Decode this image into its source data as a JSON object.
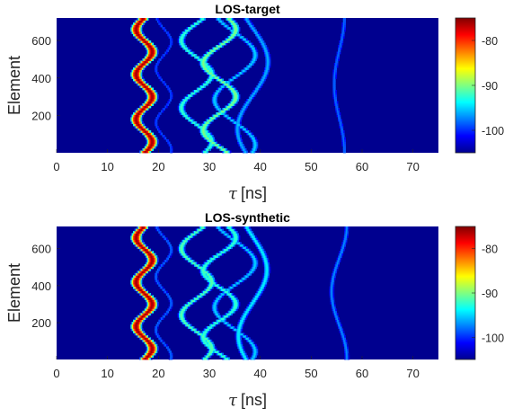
{
  "chart_data": [
    {
      "type": "heatmap",
      "title": "LOS-target",
      "xlabel_symbol": "τ",
      "xlabel_unit": "[ns]",
      "ylabel": "Element",
      "xlim": [
        0,
        75
      ],
      "ylim": [
        1,
        720
      ],
      "xticks": [
        0,
        10,
        20,
        30,
        40,
        50,
        60,
        70
      ],
      "yticks": [
        200,
        400,
        600
      ],
      "colorbar": {
        "range": [
          -105,
          -75
        ],
        "ticks": [
          -80,
          -90,
          -100
        ],
        "colormap": "jet"
      },
      "background_level": -103,
      "paths": [
        {
          "center": 17.2,
          "amplitude": 1.6,
          "periods": 3.0,
          "phase": 0.0,
          "level": -76,
          "width": 0.55
        },
        {
          "center": 21.0,
          "amplitude": 1.5,
          "periods": 2.5,
          "phase": 1.2,
          "level": -99,
          "width": 0.35
        },
        {
          "center": 27.5,
          "amplitude": 3.0,
          "periods": 2.0,
          "phase": 0.5,
          "level": -92,
          "width": 0.5
        },
        {
          "center": 32.0,
          "amplitude": 3.2,
          "periods": 2.0,
          "phase": 2.6,
          "level": -90,
          "width": 0.55
        },
        {
          "center": 35.0,
          "amplitude": 4.0,
          "periods": 1.5,
          "phase": 1.0,
          "level": -95,
          "width": 0.5
        },
        {
          "center": 38.5,
          "amplitude": 3.0,
          "periods": 1.0,
          "phase": 3.6,
          "level": -96,
          "width": 0.5
        },
        {
          "center": 55.5,
          "amplitude": 1.0,
          "periods": 1.0,
          "phase": 1.5,
          "level": -98,
          "width": 0.4
        }
      ]
    },
    {
      "type": "heatmap",
      "title": "LOS-synthetic",
      "xlabel_symbol": "τ",
      "xlabel_unit": "[ns]",
      "ylabel": "Element",
      "xlim": [
        0,
        75
      ],
      "ylim": [
        1,
        720
      ],
      "xticks": [
        0,
        10,
        20,
        30,
        40,
        50,
        60,
        70
      ],
      "yticks": [
        200,
        400,
        600
      ],
      "colorbar": {
        "range": [
          -105,
          -75
        ],
        "ticks": [
          -80,
          -90,
          -100
        ],
        "colormap": "jet"
      },
      "background_level": -104,
      "paths": [
        {
          "center": 17.2,
          "amplitude": 1.6,
          "periods": 3.0,
          "phase": 0.0,
          "level": -76,
          "width": 0.55
        },
        {
          "center": 21.0,
          "amplitude": 1.5,
          "periods": 2.5,
          "phase": 1.2,
          "level": -98,
          "width": 0.35
        },
        {
          "center": 27.5,
          "amplitude": 3.0,
          "periods": 2.0,
          "phase": 0.5,
          "level": -91,
          "width": 0.5
        },
        {
          "center": 32.0,
          "amplitude": 3.2,
          "periods": 2.0,
          "phase": 2.6,
          "level": -92,
          "width": 0.55
        },
        {
          "center": 35.0,
          "amplitude": 4.0,
          "periods": 1.5,
          "phase": 1.0,
          "level": -95,
          "width": 0.5
        },
        {
          "center": 38.5,
          "amplitude": 2.8,
          "periods": 1.0,
          "phase": 3.6,
          "level": -94,
          "width": 0.5
        },
        {
          "center": 55.5,
          "amplitude": 1.5,
          "periods": 1.0,
          "phase": 1.5,
          "level": -97,
          "width": 0.4
        }
      ]
    }
  ]
}
